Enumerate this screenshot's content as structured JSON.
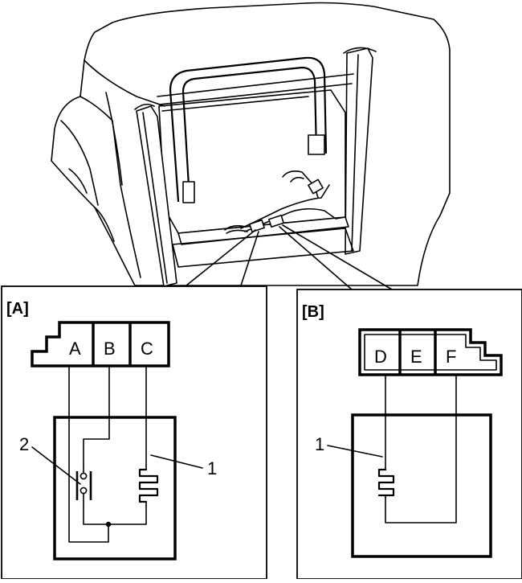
{
  "panel_a": {
    "label": "[A]",
    "pins": [
      "A",
      "B",
      "C"
    ],
    "callout_switch": "2",
    "callout_heater": "1"
  },
  "panel_b": {
    "label": "[B]",
    "pins": [
      "D",
      "E",
      "F"
    ],
    "callout_heater": "1"
  }
}
